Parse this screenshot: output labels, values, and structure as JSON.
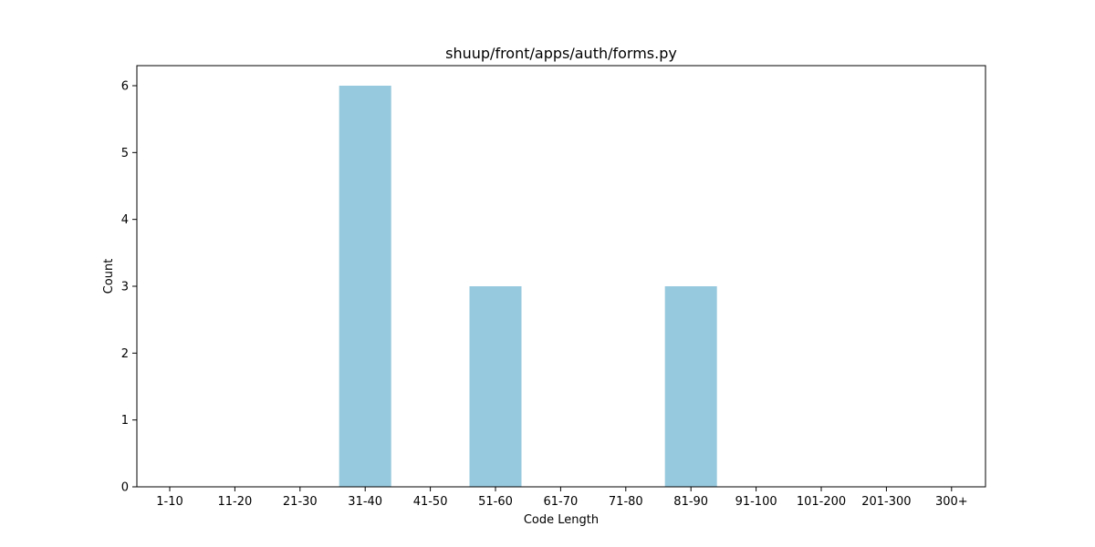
{
  "chart_data": {
    "type": "bar",
    "title": "shuup/front/apps/auth/forms.py",
    "xlabel": "Code Length",
    "ylabel": "Count",
    "categories": [
      "1-10",
      "11-20",
      "21-30",
      "31-40",
      "41-50",
      "51-60",
      "61-70",
      "71-80",
      "81-90",
      "91-100",
      "101-200",
      "201-300",
      "300+"
    ],
    "values": [
      0,
      0,
      0,
      6,
      0,
      3,
      0,
      0,
      3,
      0,
      0,
      0,
      0
    ],
    "ylim": [
      0,
      6.3
    ],
    "yticks": [
      0,
      1,
      2,
      3,
      4,
      5,
      6
    ],
    "grid": false,
    "bar_color": "#96c9dd"
  }
}
